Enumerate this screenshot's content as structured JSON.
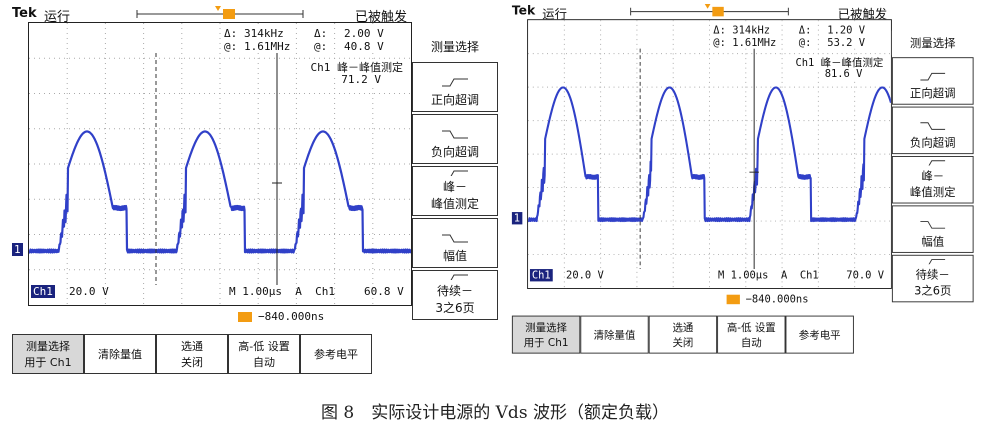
{
  "caption": "图 8　实际设计电源的 Vds 波形（额定负载）",
  "scopes": [
    {
      "brand": "Tek",
      "status": "运行",
      "trigger_state": "已被触发",
      "readout": {
        "row1": [
          "Δ:",
          "314kHz",
          "Δ:",
          "2.00 V"
        ],
        "row2": [
          "@:",
          "1.61MHz",
          "@:",
          "40.8 V"
        ]
      },
      "measurement": [
        "Ch1 峰－峰值测定",
        "71.2 V"
      ],
      "channel": "Ch1",
      "ch_scale": "20.0 V",
      "timebase": "M 1.00µs  A  Ch1",
      "trigger_level": "60.8 V",
      "offset": "−840.000ns",
      "ground_marker": "1",
      "menu_title": "测量选择",
      "menu": [
        [
          "正向超调"
        ],
        [
          "负向超调"
        ],
        [
          "峰－",
          "峰值测定"
        ],
        [
          "幅值"
        ],
        [
          "待续－",
          "3之6页"
        ]
      ],
      "buttons": [
        [
          "测量选择",
          "用于 Ch1"
        ],
        [
          "清除量值"
        ],
        [
          "选通",
          "关闭"
        ],
        [
          "高-低 设置",
          "自动"
        ],
        [
          "参考电平"
        ]
      ]
    },
    {
      "brand": "Tek",
      "status": "运行",
      "trigger_state": "已被触发",
      "readout": {
        "row1": [
          "Δ:",
          "314kHz",
          "Δ:",
          "1.20 V"
        ],
        "row2": [
          "@:",
          "1.61MHz",
          "@:",
          "53.2 V"
        ]
      },
      "measurement": [
        "Ch1 峰－峰值测定",
        "81.6 V"
      ],
      "channel": "Ch1",
      "ch_scale": "20.0 V",
      "timebase": "M 1.00µs  A  Ch1",
      "trigger_level": "70.0 V",
      "offset": "−840.000ns",
      "ground_marker": "1",
      "menu_title": "测量选择",
      "menu": [
        [
          "正向超调"
        ],
        [
          "负向超调"
        ],
        [
          "峰－",
          "峰值测定"
        ],
        [
          "幅值"
        ],
        [
          "待续－",
          "3之6页"
        ]
      ],
      "buttons": [
        [
          "测量选择",
          "用于 Ch1"
        ],
        [
          "清除量值"
        ],
        [
          "选通",
          "关闭"
        ],
        [
          "高-低 设置",
          "自动"
        ],
        [
          "参考电平"
        ]
      ]
    }
  ]
}
